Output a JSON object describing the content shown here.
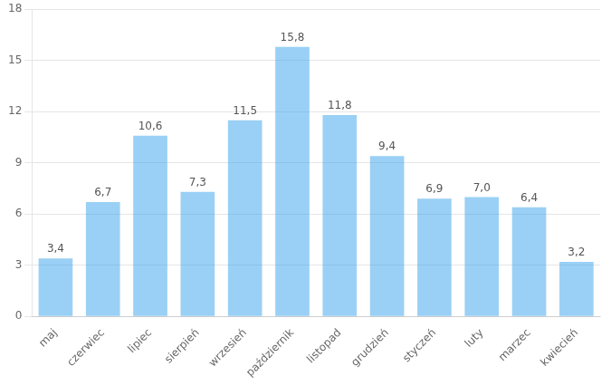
{
  "chart_data": {
    "type": "bar",
    "categories": [
      "maj",
      "czerwiec",
      "lipiec",
      "sierpień",
      "wrzesień",
      "październik",
      "listopad",
      "grudzień",
      "styczeń",
      "luty",
      "marzec",
      "kwiecień"
    ],
    "values": [
      3.4,
      6.7,
      10.6,
      7.3,
      11.5,
      15.8,
      11.8,
      9.4,
      6.9,
      7.0,
      6.4,
      3.2
    ],
    "value_labels": [
      "3,4",
      "6,7",
      "10,6",
      "7,3",
      "11,5",
      "15,8",
      "11,8",
      "9,4",
      "6,9",
      "7,0",
      "6,4",
      "3,2"
    ],
    "data_labels": true,
    "ylim": [
      0,
      18
    ],
    "yticks": [
      0,
      3,
      6,
      9,
      12,
      15,
      18
    ],
    "grid": true
  }
}
